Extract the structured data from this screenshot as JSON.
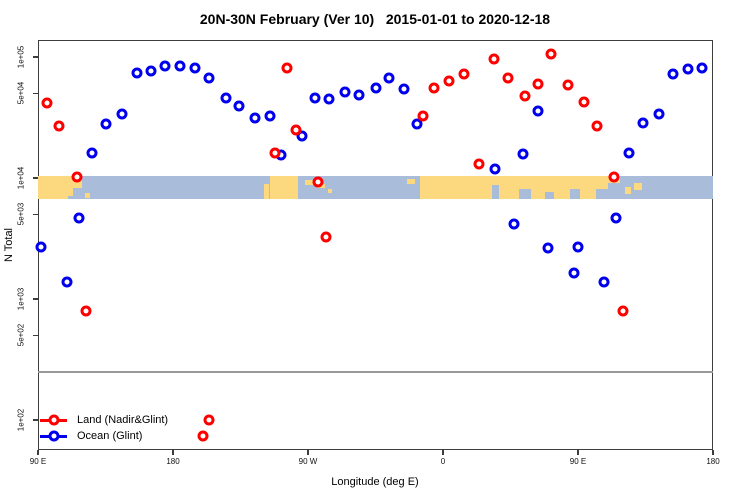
{
  "chart_data": {
    "type": "scatter",
    "title": "20N-30N February (Ver 10)   2015-01-01 to 2020-12-18",
    "xlabel": "Longitude (deg E)",
    "ylabel": "N Total",
    "x_axis": {
      "min_deg": 90,
      "max_deg": 540,
      "ticks": [
        [
          90,
          "90 E"
        ],
        [
          180,
          "180"
        ],
        [
          270,
          "90 W"
        ],
        [
          360,
          "0"
        ],
        [
          450,
          "90 E"
        ],
        [
          540,
          "180"
        ]
      ]
    },
    "y_axis": {
      "scale": "log",
      "ticks": [
        [
          100000,
          "1e+05"
        ],
        [
          50000,
          "5e+04"
        ],
        [
          10000,
          "1e+04"
        ],
        [
          5000,
          "5e+03"
        ],
        [
          1000,
          "1e+03"
        ],
        [
          500,
          "5e+02"
        ],
        [
          100,
          "1e+02"
        ]
      ]
    },
    "reference_line_n": 250,
    "map_band": {
      "n_top": 10300,
      "n_bottom": 6720,
      "ocean_color": "#a9bcd9",
      "land_color": "#fcd87f",
      "land_segments": [
        [
          90,
          119,
          0,
          0.5
        ],
        [
          90,
          113,
          0.5,
          0.85
        ],
        [
          90,
          110,
          0.85,
          1
        ],
        [
          121,
          124.5,
          0.72,
          0.95
        ],
        [
          240.5,
          244,
          0.35,
          1
        ],
        [
          244.5,
          263.5,
          0,
          1
        ],
        [
          268,
          274.5,
          0.18,
          0.4
        ],
        [
          276,
          281.5,
          0.32,
          0.52
        ],
        [
          283,
          286,
          0.55,
          0.72
        ],
        [
          336,
          341,
          0.1,
          0.32
        ],
        [
          344.5,
          396,
          0,
          1
        ],
        [
          396,
          478,
          0,
          1
        ],
        [
          481,
          485.5,
          0.45,
          0.78
        ],
        [
          487.5,
          492.5,
          0.3,
          0.6
        ]
      ],
      "ocean_patches": [
        [
          392.8,
          397.5,
          0.4,
          1
        ],
        [
          410.5,
          418.5,
          0.55,
          1
        ],
        [
          428,
          434,
          0.7,
          1
        ],
        [
          444.5,
          451.5,
          0.55,
          1
        ],
        [
          462,
          470,
          0.55,
          1
        ],
        [
          470,
          478,
          0.3,
          1
        ]
      ]
    },
    "series": [
      {
        "name": "Land (Nadir&Glint)",
        "color": "#ff0000",
        "points": [
          [
            96,
            41700
          ],
          [
            104,
            26900
          ],
          [
            115.7,
            10200
          ],
          [
            121.8,
            794
          ],
          [
            255.8,
            81100
          ],
          [
            262,
            24900
          ],
          [
            247.8,
            16100
          ],
          [
            276.5,
            9270
          ],
          [
            282,
            3250
          ],
          [
            346.5,
            32500
          ],
          [
            354.2,
            55400
          ],
          [
            364,
            63400
          ],
          [
            374.2,
            72400
          ],
          [
            384.2,
            13100
          ],
          [
            394.2,
            96200
          ],
          [
            403.1,
            67000
          ],
          [
            414.7,
            47600
          ],
          [
            423.5,
            59800
          ],
          [
            432,
            106000
          ],
          [
            443.5,
            58700
          ],
          [
            454.2,
            42500
          ],
          [
            462.5,
            26900
          ],
          [
            474,
            10200
          ],
          [
            480.2,
            794
          ],
          [
            204,
            100
          ],
          [
            200,
            74
          ]
        ]
      },
      {
        "name": "Ocean (Glint)",
        "color": "#0000ee",
        "points": [
          [
            92,
            2690
          ],
          [
            109.1,
            1380
          ],
          [
            117.1,
            4670
          ],
          [
            125.8,
            16100
          ],
          [
            135.5,
            27900
          ],
          [
            146.2,
            33800
          ],
          [
            155.8,
            73800
          ],
          [
            165.3,
            76600
          ],
          [
            174.7,
            84300
          ],
          [
            184.5,
            84300
          ],
          [
            194.9,
            81100
          ],
          [
            204,
            67000
          ],
          [
            215.3,
            45800
          ],
          [
            224.2,
            39400
          ],
          [
            234.7,
            31300
          ],
          [
            244.9,
            32500
          ],
          [
            252,
            15500
          ],
          [
            266.2,
            22200
          ],
          [
            274.7,
            45800
          ],
          [
            284.2,
            45000
          ],
          [
            294.7,
            51400
          ],
          [
            304,
            48500
          ],
          [
            315.3,
            55400
          ],
          [
            324.2,
            67000
          ],
          [
            334.2,
            54400
          ],
          [
            342.5,
            27900
          ],
          [
            394.7,
            11900
          ],
          [
            407.5,
            4170
          ],
          [
            413.5,
            15800
          ],
          [
            423.1,
            35800
          ],
          [
            430,
            2640
          ],
          [
            447.1,
            1640
          ],
          [
            449.8,
            2690
          ],
          [
            467.1,
            1380
          ],
          [
            475.3,
            4670
          ],
          [
            484,
            16100
          ],
          [
            493.5,
            28500
          ],
          [
            504.2,
            33800
          ],
          [
            513.1,
            72400
          ],
          [
            523.1,
            79600
          ],
          [
            532.5,
            81100
          ]
        ]
      }
    ]
  },
  "legend": {
    "items": [
      {
        "label": "Land (Nadir&Glint)",
        "color": "#ff0000"
      },
      {
        "label": "Ocean (Glint)",
        "color": "#0000ee"
      }
    ]
  }
}
